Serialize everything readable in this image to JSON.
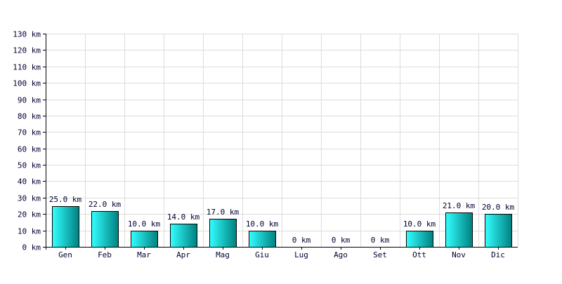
{
  "chart_data": {
    "type": "bar",
    "title": "",
    "xlabel": "",
    "ylabel": "",
    "unit": "km",
    "categories": [
      "Gen",
      "Feb",
      "Mar",
      "Apr",
      "Mag",
      "Giu",
      "Lug",
      "Ago",
      "Set",
      "Ott",
      "Nov",
      "Dic"
    ],
    "values": [
      25,
      22,
      10,
      14,
      17,
      10,
      0,
      0,
      0,
      10,
      21,
      20
    ],
    "value_labels": [
      "25.0 km",
      "22.0 km",
      "10.0 km",
      "14.0 km",
      "17.0 km",
      "10.0 km",
      "0 km",
      "0 km",
      "0 km",
      "10.0 km",
      "21.0 km",
      "20.0 km"
    ],
    "ylim": [
      0,
      130
    ],
    "yticks": [
      0,
      10,
      20,
      30,
      40,
      50,
      60,
      70,
      80,
      90,
      100,
      110,
      120,
      130
    ],
    "ytick_labels": [
      "0 km",
      "10 km",
      "20 km",
      "30 km",
      "40 km",
      "50 km",
      "60 km",
      "70 km",
      "80 km",
      "90 km",
      "100 km",
      "110 km",
      "120 km",
      "130 km"
    ],
    "grid": true,
    "legend": "none",
    "colors": {
      "bar_light": "#33ffff",
      "bar_dark": "#008080",
      "bar_stroke": "#000000",
      "grid": "#dcdcdc",
      "axis": "#000000",
      "text": "#000033"
    }
  }
}
